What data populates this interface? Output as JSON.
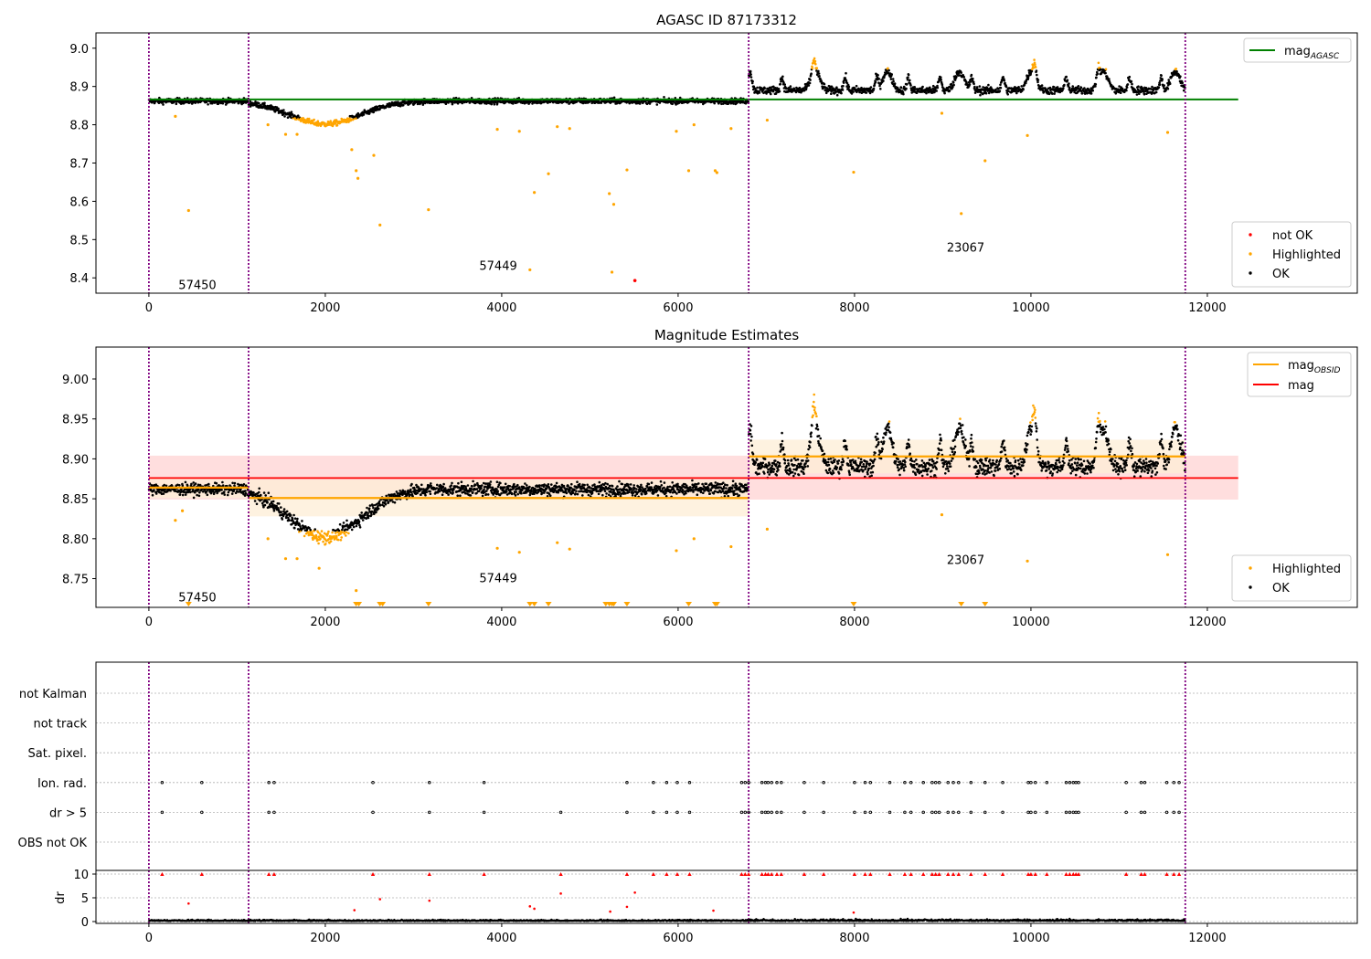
{
  "figure": {
    "title_top": "AGASC ID 87173312",
    "title_mid": "Magnitude Estimates"
  },
  "colors": {
    "ok": "#000000",
    "highlighted": "#ffa500",
    "not_ok": "#ff0000",
    "mag_agasc_line": "#008000",
    "mag_line": "#ff0000",
    "mag_obsid_line": "#ffa500",
    "obs_divider": "#800080",
    "band_red": "#ffd8d8",
    "band_orange": "#fdeed6"
  },
  "chart_data": [
    {
      "id": "top",
      "type": "scatter",
      "title": "AGASC ID 87173312",
      "xlim": [
        -600,
        13700
      ],
      "ylim": [
        8.36,
        9.04
      ],
      "xticks": [
        0,
        2000,
        4000,
        6000,
        8000,
        10000,
        12000
      ],
      "yticks": [
        8.4,
        8.5,
        8.6,
        8.7,
        8.8,
        8.9,
        9.0
      ],
      "ytick_labels": [
        "8.4",
        "8.5",
        "8.6",
        "8.7",
        "8.8",
        "8.9",
        "9.0"
      ],
      "obs_boundaries": [
        0,
        1130,
        6800,
        11750
      ],
      "obsid_labels": [
        {
          "text": "57450",
          "x": 550,
          "y": 8.38
        },
        {
          "text": "57449",
          "x": 3960,
          "y": 8.43
        },
        {
          "text": "23067",
          "x": 9260,
          "y": 8.478
        }
      ],
      "lines": [
        {
          "name": "mag_AGASC",
          "y": 8.866,
          "x_range": [
            0,
            12350
          ],
          "color": "#008000"
        }
      ],
      "segments": [
        {
          "x0": 0,
          "x1": 1130,
          "base": 8.862,
          "noise": 0.007,
          "dip": null
        },
        {
          "x0": 1130,
          "x1": 6800,
          "base": 8.862,
          "noise": 0.007,
          "dip": {
            "center": 2000,
            "width": 720,
            "depth": 0.06
          }
        },
        {
          "x0": 6800,
          "x1": 11750,
          "base": 8.89,
          "noise": 0.01,
          "bursty": true
        }
      ],
      "highlight_threshold_low": 8.818,
      "highlight_threshold_high": 8.945,
      "outliers_highlighted": [
        [
          300,
          8.822
        ],
        [
          450,
          8.576
        ],
        [
          1350,
          8.8
        ],
        [
          1550,
          8.775
        ],
        [
          1680,
          8.775
        ],
        [
          2300,
          8.735
        ],
        [
          2350,
          8.68
        ],
        [
          2370,
          8.66
        ],
        [
          2550,
          8.72
        ],
        [
          2620,
          8.538
        ],
        [
          3170,
          8.578
        ],
        [
          3950,
          8.788
        ],
        [
          4200,
          8.783
        ],
        [
          4320,
          8.421
        ],
        [
          4370,
          8.623
        ],
        [
          4530,
          8.672
        ],
        [
          4630,
          8.795
        ],
        [
          4770,
          8.79
        ],
        [
          5220,
          8.62
        ],
        [
          5250,
          8.415
        ],
        [
          5270,
          8.592
        ],
        [
          5420,
          8.682
        ],
        [
          5980,
          8.783
        ],
        [
          6120,
          8.68
        ],
        [
          6180,
          8.8
        ],
        [
          6420,
          8.68
        ],
        [
          6440,
          8.675
        ],
        [
          6600,
          8.79
        ],
        [
          7010,
          8.812
        ],
        [
          7990,
          8.676
        ],
        [
          8990,
          8.83
        ],
        [
          9210,
          8.568
        ],
        [
          9480,
          8.706
        ],
        [
          9960,
          8.772
        ],
        [
          11550,
          8.78
        ]
      ],
      "outliers_not_ok": [
        [
          5510,
          8.393
        ]
      ],
      "legend_lines": [
        {
          "label": "mag",
          "sub": "AGASC",
          "color": "#008000"
        }
      ],
      "legend_points": [
        {
          "label": "not OK",
          "color": "#ff0000"
        },
        {
          "label": "Highlighted",
          "color": "#ffa500"
        },
        {
          "label": "OK",
          "color": "#000000"
        }
      ]
    },
    {
      "id": "middle",
      "type": "scatter",
      "title": "Magnitude Estimates",
      "xlim": [
        -600,
        13700
      ],
      "ylim": [
        8.714,
        9.04
      ],
      "xticks": [
        0,
        2000,
        4000,
        6000,
        8000,
        10000,
        12000
      ],
      "yticks": [
        8.75,
        8.8,
        8.85,
        8.9,
        8.95,
        9.0
      ],
      "ytick_labels": [
        "8.75",
        "8.80",
        "8.85",
        "8.90",
        "8.95",
        "9.00"
      ],
      "obs_boundaries": [
        0,
        1130,
        6800,
        11750
      ],
      "obsid_labels": [
        {
          "text": "57450",
          "x": 550,
          "y": 8.726
        },
        {
          "text": "57449",
          "x": 3960,
          "y": 8.75
        },
        {
          "text": "23067",
          "x": 9260,
          "y": 8.773
        }
      ],
      "mag": {
        "value": 8.876,
        "band": [
          8.849,
          8.904
        ],
        "x_range": [
          0,
          12350
        ]
      },
      "mag_obsid": [
        {
          "x0": 0,
          "x1": 1130,
          "value": 8.864,
          "band": [
            8.851,
            8.877
          ]
        },
        {
          "x0": 1130,
          "x1": 6800,
          "value": 8.851,
          "band": [
            8.828,
            8.874
          ]
        },
        {
          "x0": 6800,
          "x1": 11750,
          "value": 8.903,
          "band": [
            8.882,
            8.924
          ]
        }
      ],
      "segments": [
        {
          "x0": 0,
          "x1": 1130,
          "base": 8.862,
          "noise": 0.007,
          "dip": null
        },
        {
          "x0": 1130,
          "x1": 6800,
          "base": 8.862,
          "noise": 0.008,
          "dip": {
            "center": 2000,
            "width": 720,
            "depth": 0.06
          }
        },
        {
          "x0": 6800,
          "x1": 11750,
          "base": 8.89,
          "noise": 0.011,
          "bursty": true
        }
      ],
      "highlight_threshold_low": 8.81,
      "highlight_threshold_high": 8.945,
      "outliers_highlighted": [
        [
          300,
          8.823
        ],
        [
          380,
          8.835
        ],
        [
          1350,
          8.8
        ],
        [
          1550,
          8.775
        ],
        [
          1680,
          8.775
        ],
        [
          1930,
          8.763
        ],
        [
          2350,
          8.735
        ],
        [
          3950,
          8.788
        ],
        [
          4200,
          8.783
        ],
        [
          4630,
          8.795
        ],
        [
          4770,
          8.787
        ],
        [
          5980,
          8.785
        ],
        [
          6180,
          8.8
        ],
        [
          6600,
          8.79
        ],
        [
          7010,
          8.812
        ],
        [
          8990,
          8.83
        ],
        [
          9960,
          8.772
        ],
        [
          11550,
          8.78
        ]
      ],
      "offscale_markers_x": [
        450,
        2350,
        2380,
        2620,
        2650,
        3170,
        4320,
        4370,
        4530,
        5180,
        5220,
        5250,
        5270,
        5420,
        6120,
        6420,
        6440,
        7990,
        9210,
        9480
      ],
      "legend_lines": [
        {
          "label": "mag",
          "sub": "OBSID",
          "color": "#ffa500"
        },
        {
          "label": "mag",
          "sub": "",
          "color": "#ff0000"
        }
      ],
      "legend_points": [
        {
          "label": "Highlighted",
          "color": "#ffa500"
        },
        {
          "label": "OK",
          "color": "#000000"
        }
      ]
    },
    {
      "id": "flags",
      "type": "scatter",
      "xlim": [
        -600,
        13700
      ],
      "categories": [
        "not Kalman",
        "not track",
        "Sat. pixel.",
        "Ion. rad.",
        "dr > 5",
        "OBS not OK"
      ],
      "obs_boundaries": [
        0,
        1130,
        6800,
        11750
      ],
      "flag_x": {
        "Ion. rad.": [
          150,
          600,
          1360,
          1420,
          2540,
          3180,
          3800,
          5420,
          5720,
          5870,
          5990,
          6130,
          6720,
          6760,
          6800,
          6950,
          6990,
          7020,
          7060,
          7120,
          7170,
          7430,
          7650,
          8000,
          8120,
          8180,
          8400,
          8570,
          8640,
          8780,
          8880,
          8920,
          8960,
          9060,
          9120,
          9180,
          9320,
          9480,
          9680,
          9970,
          10000,
          10050,
          10180,
          10400,
          10440,
          10480,
          10510,
          10540,
          11080,
          11250,
          11290,
          11540,
          11620,
          11680
        ],
        "dr > 5": [
          150,
          600,
          1360,
          1420,
          2540,
          3180,
          3800,
          4670,
          5420,
          5720,
          5870,
          5990,
          6130,
          6720,
          6760,
          6800,
          6950,
          6990,
          7020,
          7060,
          7120,
          7170,
          7430,
          7650,
          8000,
          8120,
          8180,
          8400,
          8570,
          8640,
          8780,
          8880,
          8920,
          8960,
          9060,
          9120,
          9180,
          9320,
          9480,
          9680,
          9970,
          10000,
          10050,
          10180,
          10400,
          10440,
          10480,
          10510,
          10540,
          11080,
          11250,
          11290,
          11540,
          11620,
          11680
        ]
      }
    },
    {
      "id": "dr",
      "type": "scatter",
      "ylabel": "dr",
      "xlim": [
        -600,
        13700
      ],
      "ylim": [
        -0.5,
        10.5
      ],
      "xticks": [
        0,
        2000,
        4000,
        6000,
        8000,
        10000,
        12000
      ],
      "yticks": [
        0,
        5,
        10
      ],
      "ytick_labels": [
        "0",
        "5",
        "10"
      ],
      "obs_boundaries": [
        0,
        1130,
        6800,
        11750
      ],
      "clipped_value": 10,
      "outliers": [
        [
          450,
          3.8
        ],
        [
          2620,
          4.7
        ],
        [
          3180,
          4.4
        ],
        [
          4320,
          3.2
        ],
        [
          4370,
          2.7
        ],
        [
          4670,
          5.9
        ],
        [
          5420,
          3.1
        ],
        [
          5510,
          6.1
        ],
        [
          2330,
          2.4
        ],
        [
          5230,
          2.1
        ],
        [
          6400,
          2.3
        ],
        [
          7990,
          1.9
        ]
      ]
    }
  ]
}
